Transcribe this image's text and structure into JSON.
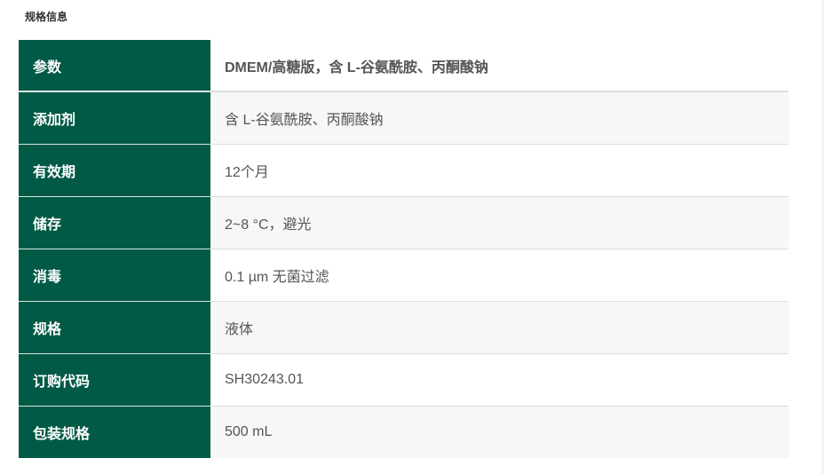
{
  "section_title": "规格信息",
  "specs": [
    {
      "label": "参数",
      "value": "DMEM/高糖版，含 L-谷氨酰胺、丙酮酸钠"
    },
    {
      "label": "添加剂",
      "value": "含 L-谷氨酰胺、丙酮酸钠"
    },
    {
      "label": "有效期",
      "value": "12个月"
    },
    {
      "label": "储存",
      "value": "2~8 °C，避光"
    },
    {
      "label": "消毒",
      "value": "0.1 µm 无菌过滤"
    },
    {
      "label": "规格",
      "value": "液体"
    },
    {
      "label": "订购代码",
      "value": "SH30243.01"
    },
    {
      "label": "包装规格",
      "value": "500 mL"
    }
  ]
}
